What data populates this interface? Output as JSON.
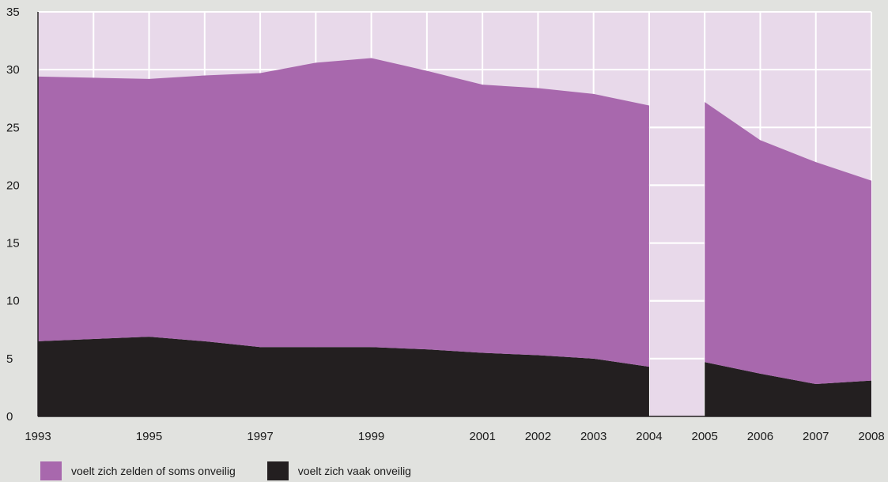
{
  "chart_data": {
    "type": "area",
    "stacked": true,
    "title": "",
    "xlabel": "",
    "ylabel": "",
    "x": [
      "1993",
      "1994",
      "1995",
      "1996",
      "1997",
      "1998",
      "1999",
      "2000",
      "2001",
      "2002",
      "2003",
      "2004",
      "2005",
      "2006",
      "2007",
      "2008"
    ],
    "x_tick_labels": [
      "1993",
      "1995",
      "1997",
      "1999",
      "2001",
      "2002",
      "2003",
      "2004",
      "2005",
      "2006",
      "2007",
      "2008"
    ],
    "ylim": [
      0,
      35
    ],
    "y_ticks": [
      0,
      5,
      10,
      15,
      20,
      25,
      30,
      35
    ],
    "grid": true,
    "gap": [
      "2004",
      "2005"
    ],
    "plot_background": "#e8d9ea",
    "series": [
      {
        "name": "voelt zich vaak onveilig",
        "color": "#231f20",
        "values": [
          6.5,
          6.7,
          6.9,
          6.5,
          6.0,
          6.0,
          6.0,
          5.8,
          5.5,
          5.3,
          5.0,
          4.3,
          4.7,
          3.7,
          2.8,
          3.1
        ]
      },
      {
        "name": "voelt zich zelden of soms onveilig",
        "color": "#a868ad",
        "values": [
          22.9,
          22.6,
          22.3,
          23.0,
          23.7,
          24.6,
          25.0,
          24.1,
          23.2,
          23.1,
          22.9,
          22.6,
          22.5,
          20.2,
          19.2,
          17.3
        ]
      }
    ],
    "legend": {
      "position": "bottom-left",
      "entries": [
        "voelt zich zelden of soms onveilig",
        "voelt zich vaak onveilig"
      ]
    }
  }
}
